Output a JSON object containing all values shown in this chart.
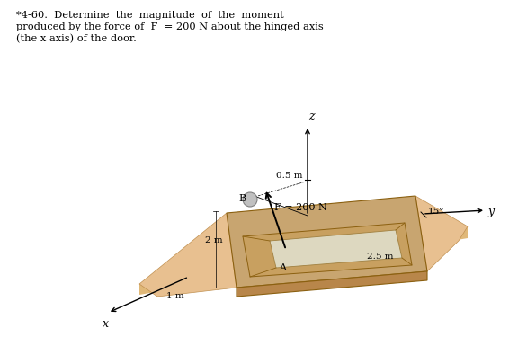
{
  "bg_color": "#ffffff",
  "title_line1": "*4-60.  Determine  the  magnitude  of  the  moment",
  "title_line2": "produced by the force of  F  = 200 N about the hinged axis",
  "title_line3": "(the x axis) of the door.",
  "door_top_color": "#c8a570",
  "door_side_color": "#b8864a",
  "door_shadow_color": "#d4aa78",
  "door_frame_color": "#b07030",
  "door_inner_color": "#e0c890",
  "door_glass_color": "#d8d0b8",
  "shadow_color": "#e8c090"
}
